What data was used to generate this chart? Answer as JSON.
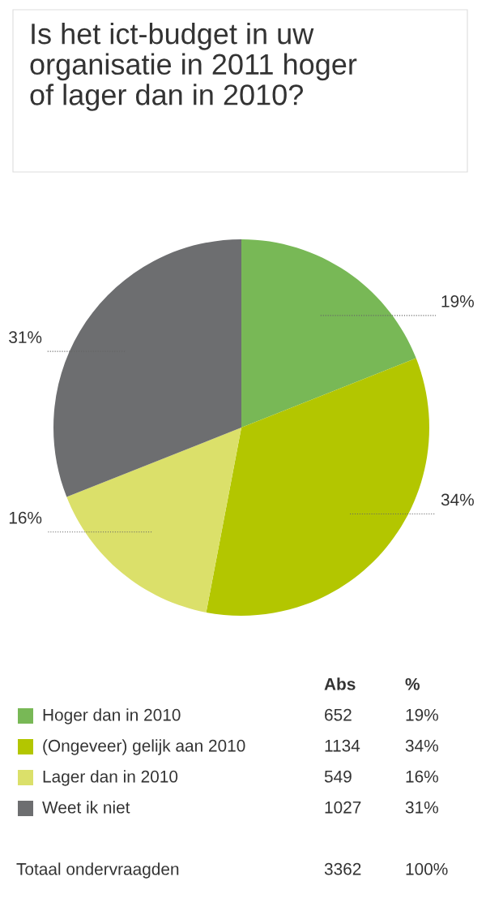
{
  "chart_data": {
    "type": "pie",
    "title": "Is het ict-budget in uw\norganisatie in 2011 hoger\nof lager dan in 2010?",
    "categories": [
      "Hoger dan in 2010",
      "(Ongeveer) gelijk aan 2010",
      "Lager dan in 2010",
      "Weet ik niet"
    ],
    "values": [
      19,
      34,
      16,
      31
    ],
    "value_labels": [
      "19%",
      "34%",
      "16%",
      "31%"
    ],
    "colors": [
      "#78b856",
      "#b3c600",
      "#dbe06a",
      "#6d6e70"
    ],
    "legend": "bottom",
    "annotations": [
      "Abs",
      "%",
      "652",
      "1134",
      "549",
      "1027",
      "Totaal ondervraagden",
      "3362",
      "100%"
    ]
  }
}
